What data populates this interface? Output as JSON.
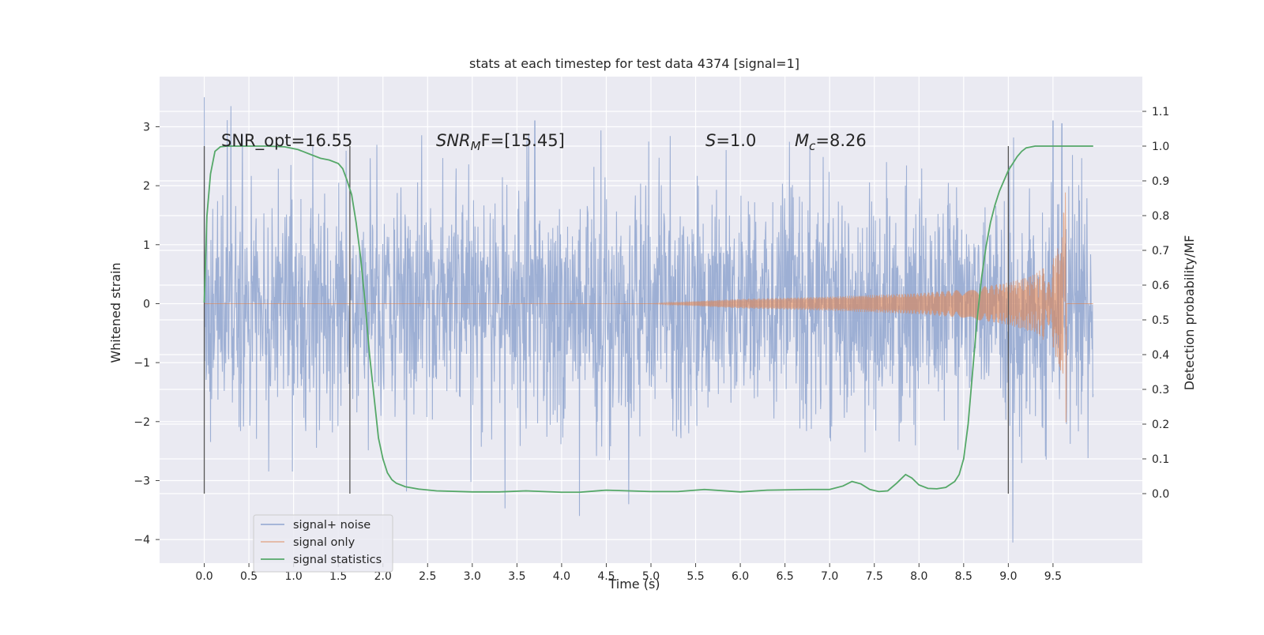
{
  "chart_data": {
    "type": "line",
    "title": "stats at each timestep for test data 4374 [signal=1]",
    "xlabel": "Time (s)",
    "ylabel": "Whitened strain",
    "ylabel_right": "Detection probability/MF",
    "xlim": [
      -0.5,
      10.5
    ],
    "ylim": [
      -4.4,
      3.85
    ],
    "ylim_right": [
      -0.2,
      1.2
    ],
    "x_ticks": [
      "0.0",
      "0.5",
      "1.0",
      "1.5",
      "2.0",
      "2.5",
      "3.0",
      "3.5",
      "4.0",
      "4.5",
      "5.0",
      "5.5",
      "6.0",
      "6.5",
      "7.0",
      "7.5",
      "8.0",
      "8.5",
      "9.0",
      "9.5"
    ],
    "y_ticks": [
      "3",
      "2",
      "1",
      "0",
      "−1",
      "−2",
      "−3",
      "−4"
    ],
    "y_ticks_right": [
      "1.1",
      "1.0",
      "0.9",
      "0.8",
      "0.7",
      "0.6",
      "0.5",
      "0.4",
      "0.3",
      "0.2",
      "0.1",
      "0.0"
    ],
    "grid": true,
    "legend_position": "lower-left",
    "annotations": {
      "snr_opt": "SNR_opt=16.55",
      "snr_mf_main": "SNR",
      "snr_mf_sub": "M",
      "snr_mf_rest": "F=[15.45]",
      "s_main": "S",
      "s_rest": "=1.0",
      "mc_main": "M",
      "mc_sub": "c",
      "mc_rest": "=8.26"
    },
    "series": [
      {
        "name": "signal+ noise",
        "color": "#8fa5cf",
        "x_range": [
          0.0,
          9.95
        ],
        "typical_envelope": [
          -1.5,
          1.5
        ],
        "notable_peaks": [
          {
            "x": 0.0,
            "y": 3.5
          },
          {
            "x": 0.3,
            "y": 3.35
          },
          {
            "x": 3.7,
            "y": 3.1
          },
          {
            "x": 4.2,
            "y": -3.6
          },
          {
            "x": 4.75,
            "y": -3.4
          },
          {
            "x": 9.05,
            "y": -4.05
          },
          {
            "x": 9.5,
            "y": 3.1
          },
          {
            "x": 9.6,
            "y": 3.05
          }
        ]
      },
      {
        "name": "signal only",
        "color": "#dd8452",
        "x_range": [
          0.0,
          9.95
        ],
        "chirp_start": 5.0,
        "merger_time": 9.65,
        "envelope": [
          [
            5.0,
            0.0
          ],
          [
            6.0,
            0.08
          ],
          [
            7.0,
            0.12
          ],
          [
            8.0,
            0.18
          ],
          [
            8.5,
            0.24
          ],
          [
            9.0,
            0.36
          ],
          [
            9.3,
            0.5
          ],
          [
            9.5,
            0.75
          ],
          [
            9.6,
            1.2
          ],
          [
            9.65,
            2.4
          ]
        ]
      },
      {
        "name": "signal statistics",
        "color": "#55a868",
        "axis": "right",
        "x": [
          0.0,
          0.03,
          0.07,
          0.12,
          0.18,
          0.25,
          0.35,
          0.5,
          0.7,
          0.9,
          1.05,
          1.2,
          1.3,
          1.4,
          1.5,
          1.55,
          1.6,
          1.65,
          1.7,
          1.75,
          1.8,
          1.85,
          1.9,
          1.95,
          2.0,
          2.05,
          2.1,
          2.15,
          2.25,
          2.4,
          2.6,
          3.0,
          3.3,
          3.6,
          4.0,
          4.2,
          4.5,
          5.0,
          5.3,
          5.6,
          6.0,
          6.3,
          6.8,
          7.0,
          7.15,
          7.25,
          7.35,
          7.45,
          7.55,
          7.65,
          7.75,
          7.85,
          7.92,
          8.0,
          8.1,
          8.2,
          8.3,
          8.4,
          8.45,
          8.5,
          8.55,
          8.6,
          8.65,
          8.7,
          8.75,
          8.8,
          8.85,
          8.9,
          8.95,
          9.0,
          9.05,
          9.1,
          9.15,
          9.2,
          9.3,
          9.4,
          9.6,
          9.95
        ],
        "y": [
          0.55,
          0.8,
          0.92,
          0.985,
          0.998,
          1.0,
          1.0,
          1.0,
          1.0,
          0.998,
          0.99,
          0.975,
          0.965,
          0.96,
          0.95,
          0.935,
          0.9,
          0.86,
          0.78,
          0.68,
          0.55,
          0.4,
          0.28,
          0.16,
          0.1,
          0.06,
          0.04,
          0.03,
          0.02,
          0.013,
          0.008,
          0.005,
          0.005,
          0.008,
          0.004,
          0.004,
          0.01,
          0.006,
          0.006,
          0.012,
          0.005,
          0.01,
          0.012,
          0.012,
          0.022,
          0.035,
          0.028,
          0.012,
          0.006,
          0.008,
          0.03,
          0.055,
          0.045,
          0.025,
          0.015,
          0.014,
          0.018,
          0.035,
          0.055,
          0.1,
          0.2,
          0.35,
          0.5,
          0.62,
          0.71,
          0.78,
          0.83,
          0.87,
          0.9,
          0.93,
          0.95,
          0.97,
          0.985,
          0.995,
          1.0,
          1.0,
          1.0,
          1.0
        ]
      }
    ],
    "vertical_lines_x": [
      0.0,
      1.63,
      9.0
    ]
  }
}
